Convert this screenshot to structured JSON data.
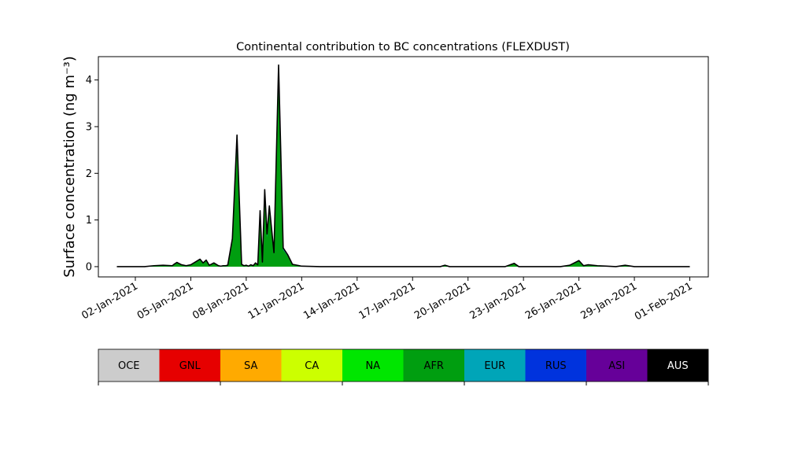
{
  "chart_data": {
    "type": "area",
    "stacked": true,
    "title": "Continental contribution to BC concentrations (FLEXDUST)",
    "ylabel": "Surface concentration (ng m⁻³)",
    "xlabel": "",
    "x_range": [
      "2021-01-01",
      "2021-02-01"
    ],
    "xlim": [
      "2020-12-31",
      "2021-02-02"
    ],
    "ylim": [
      -0.22,
      4.5
    ],
    "y_ticks": [
      0,
      1,
      2,
      3,
      4
    ],
    "x_ticks": [
      "02-Jan-2021",
      "05-Jan-2021",
      "08-Jan-2021",
      "11-Jan-2021",
      "14-Jan-2021",
      "17-Jan-2021",
      "20-Jan-2021",
      "23-Jan-2021",
      "26-Jan-2021",
      "29-Jan-2021",
      "01-Feb-2021"
    ],
    "grid": false,
    "regions": [
      {
        "name": "OCE",
        "color": "#cccccc",
        "text_color": "#000000"
      },
      {
        "name": "GNL",
        "color": "#e60000",
        "text_color": "#000000"
      },
      {
        "name": "SA",
        "color": "#ffaa00",
        "text_color": "#000000"
      },
      {
        "name": "CA",
        "color": "#ccff00",
        "text_color": "#000000"
      },
      {
        "name": "NA",
        "color": "#00e600",
        "text_color": "#000000"
      },
      {
        "name": "AFR",
        "color": "#009e10",
        "text_color": "#000000"
      },
      {
        "name": "EUR",
        "color": "#00a5b8",
        "text_color": "#000000"
      },
      {
        "name": "RUS",
        "color": "#0033dd",
        "text_color": "#000000"
      },
      {
        "name": "ASI",
        "color": "#660099",
        "text_color": "#000000"
      },
      {
        "name": "AUS",
        "color": "#000000",
        "text_color": "#ffffff"
      }
    ],
    "total_series": {
      "name": "AUS",
      "x": [
        "2021-01-01T00:00",
        "2021-01-01T18:00",
        "2021-01-02T12:00",
        "2021-01-03T00:00",
        "2021-01-03T12:00",
        "2021-01-04T00:00",
        "2021-01-04T03:00",
        "2021-01-04T06:00",
        "2021-01-04T12:00",
        "2021-01-04T18:00",
        "2021-01-05T00:00",
        "2021-01-05T12:00",
        "2021-01-05T16:00",
        "2021-01-05T20:00",
        "2021-01-06T00:00",
        "2021-01-06T06:00",
        "2021-01-06T12:00",
        "2021-01-06T15:00",
        "2021-01-06T18:00",
        "2021-01-06T21:00",
        "2021-01-07T00:00",
        "2021-01-07T06:00",
        "2021-01-07T12:00",
        "2021-01-07T18:00",
        "2021-01-07T21:00",
        "2021-01-08T00:00",
        "2021-01-08T03:00",
        "2021-01-08T06:00",
        "2021-01-08T09:00",
        "2021-01-08T12:00",
        "2021-01-08T15:00",
        "2021-01-08T18:00",
        "2021-01-08T21:00",
        "2021-01-09T00:00",
        "2021-01-09T03:00",
        "2021-01-09T06:00",
        "2021-01-09T12:00",
        "2021-01-09T18:00",
        "2021-01-10T00:00",
        "2021-01-10T06:00",
        "2021-01-10T12:00",
        "2021-01-11T00:00",
        "2021-01-12T00:00",
        "2021-01-15T00:00",
        "2021-01-18T12:00",
        "2021-01-18T18:00",
        "2021-01-19T00:00",
        "2021-01-21T12:00",
        "2021-01-22T00:00",
        "2021-01-22T12:00",
        "2021-01-22T18:00",
        "2021-01-23T00:00",
        "2021-01-24T00:00",
        "2021-01-25T00:00",
        "2021-01-25T12:00",
        "2021-01-26T00:00",
        "2021-01-26T06:00",
        "2021-01-26T12:00",
        "2021-01-27T00:00",
        "2021-01-27T12:00",
        "2021-01-28T00:00",
        "2021-01-28T12:00",
        "2021-01-29T00:00",
        "2021-01-30T00:00",
        "2021-01-31T00:00",
        "2021-02-01T00:00"
      ],
      "y": [
        0,
        0,
        0,
        0.02,
        0.03,
        0.02,
        0.06,
        0.09,
        0.04,
        0.02,
        0.04,
        0.16,
        0.08,
        0.14,
        0.03,
        0.08,
        0.02,
        0.01,
        0.02,
        0.02,
        0.03,
        0.6,
        2.82,
        0.05,
        0.02,
        0.03,
        0.01,
        0.04,
        0.02,
        0.08,
        0.04,
        1.2,
        0.1,
        1.65,
        0.7,
        1.3,
        0.3,
        4.32,
        0.4,
        0.25,
        0.05,
        0.01,
        0,
        0,
        0,
        0.03,
        0,
        0,
        0,
        0.07,
        0,
        0,
        0,
        0,
        0.03,
        0.13,
        0.02,
        0.04,
        0.02,
        0.01,
        0,
        0.03,
        0,
        0,
        0,
        0
      ]
    },
    "note": "dominant fill AFR (#009e10), secondary EUR (#00a5b8)"
  }
}
